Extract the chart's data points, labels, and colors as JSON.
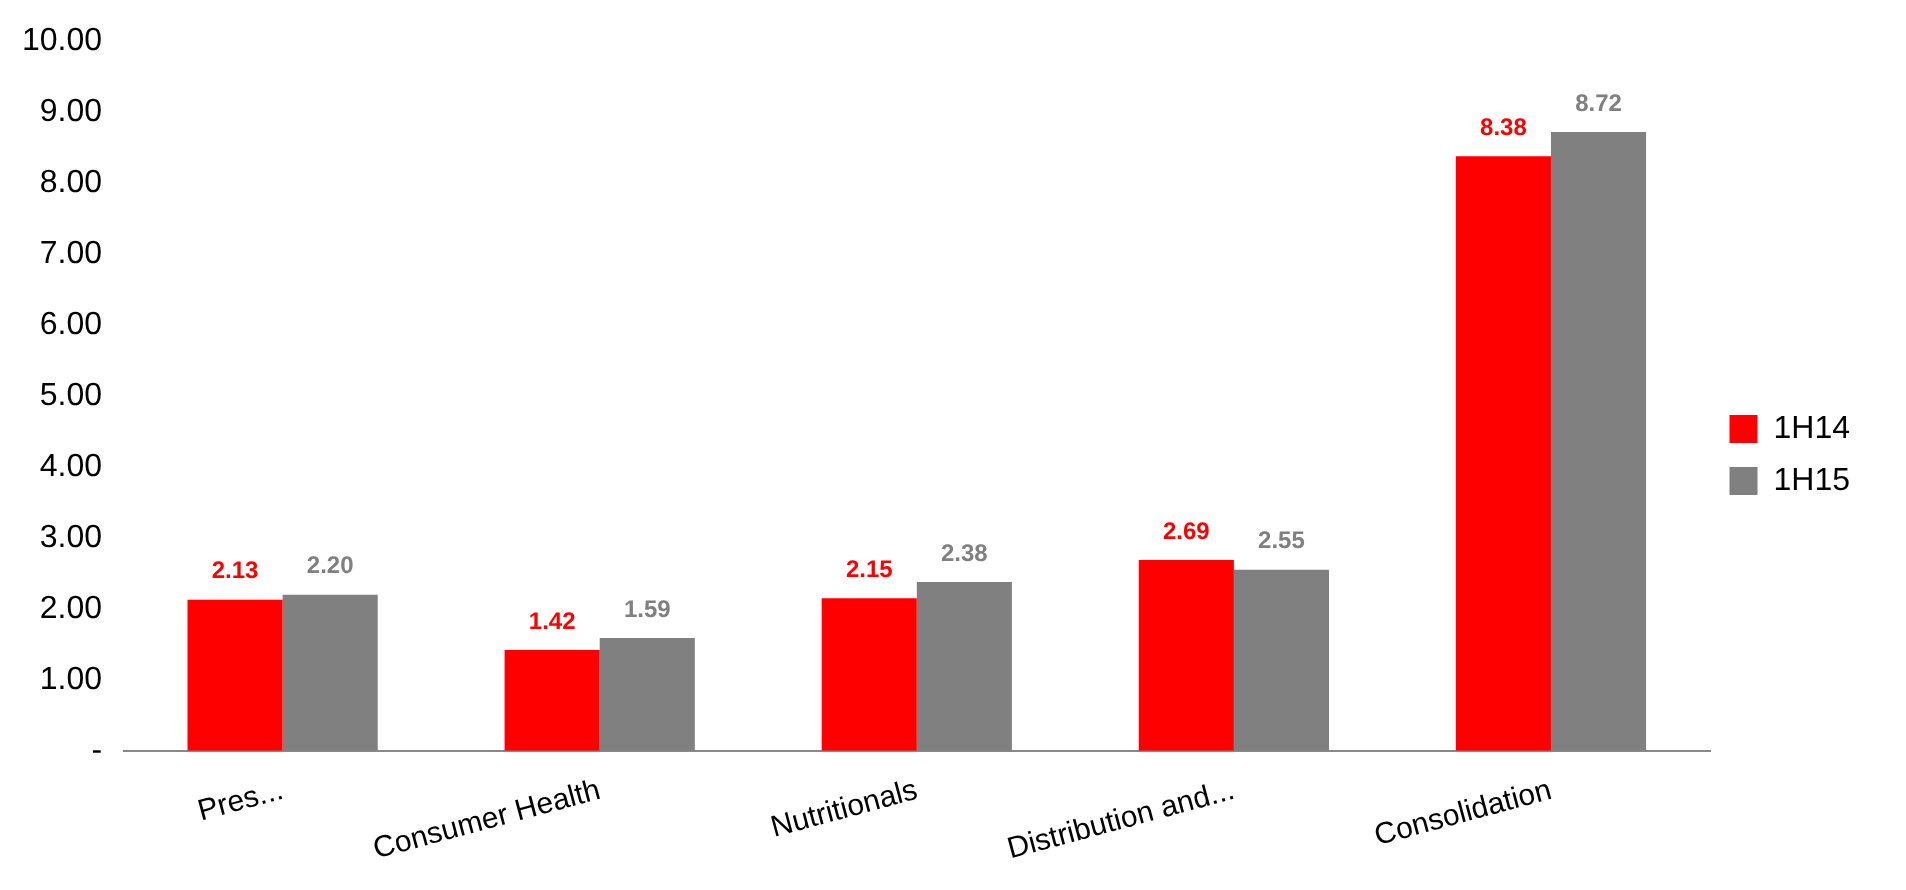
{
  "chart_data": {
    "type": "bar",
    "categories": [
      "Pres...",
      "Consumer Health",
      "Nutritionals",
      "Distribution and...",
      "Consolidation"
    ],
    "series": [
      {
        "name": "1H14",
        "color": "#ff0000",
        "values": [
          2.13,
          1.42,
          2.15,
          2.69,
          8.38
        ],
        "value_labels": [
          "2.13",
          "1.42",
          "2.15",
          "2.69",
          "8.38"
        ]
      },
      {
        "name": "1H15",
        "color": "#808080",
        "values": [
          2.2,
          1.59,
          2.38,
          2.55,
          8.72
        ],
        "value_labels": [
          "2.20",
          "1.59",
          "2.38",
          "2.55",
          "8.72"
        ]
      }
    ],
    "ylim": [
      0,
      10
    ],
    "yticks": [
      {
        "value": 0,
        "label": "-"
      },
      {
        "value": 1,
        "label": "1.00"
      },
      {
        "value": 2,
        "label": "2.00"
      },
      {
        "value": 3,
        "label": "3.00"
      },
      {
        "value": 4,
        "label": "4.00"
      },
      {
        "value": 5,
        "label": "5.00"
      },
      {
        "value": 6,
        "label": "6.00"
      },
      {
        "value": 7,
        "label": "7.00"
      },
      {
        "value": 8,
        "label": "8.00"
      },
      {
        "value": 9,
        "label": "9.00"
      },
      {
        "value": 10,
        "label": "10.00"
      }
    ],
    "grid": false,
    "legend": "right"
  }
}
